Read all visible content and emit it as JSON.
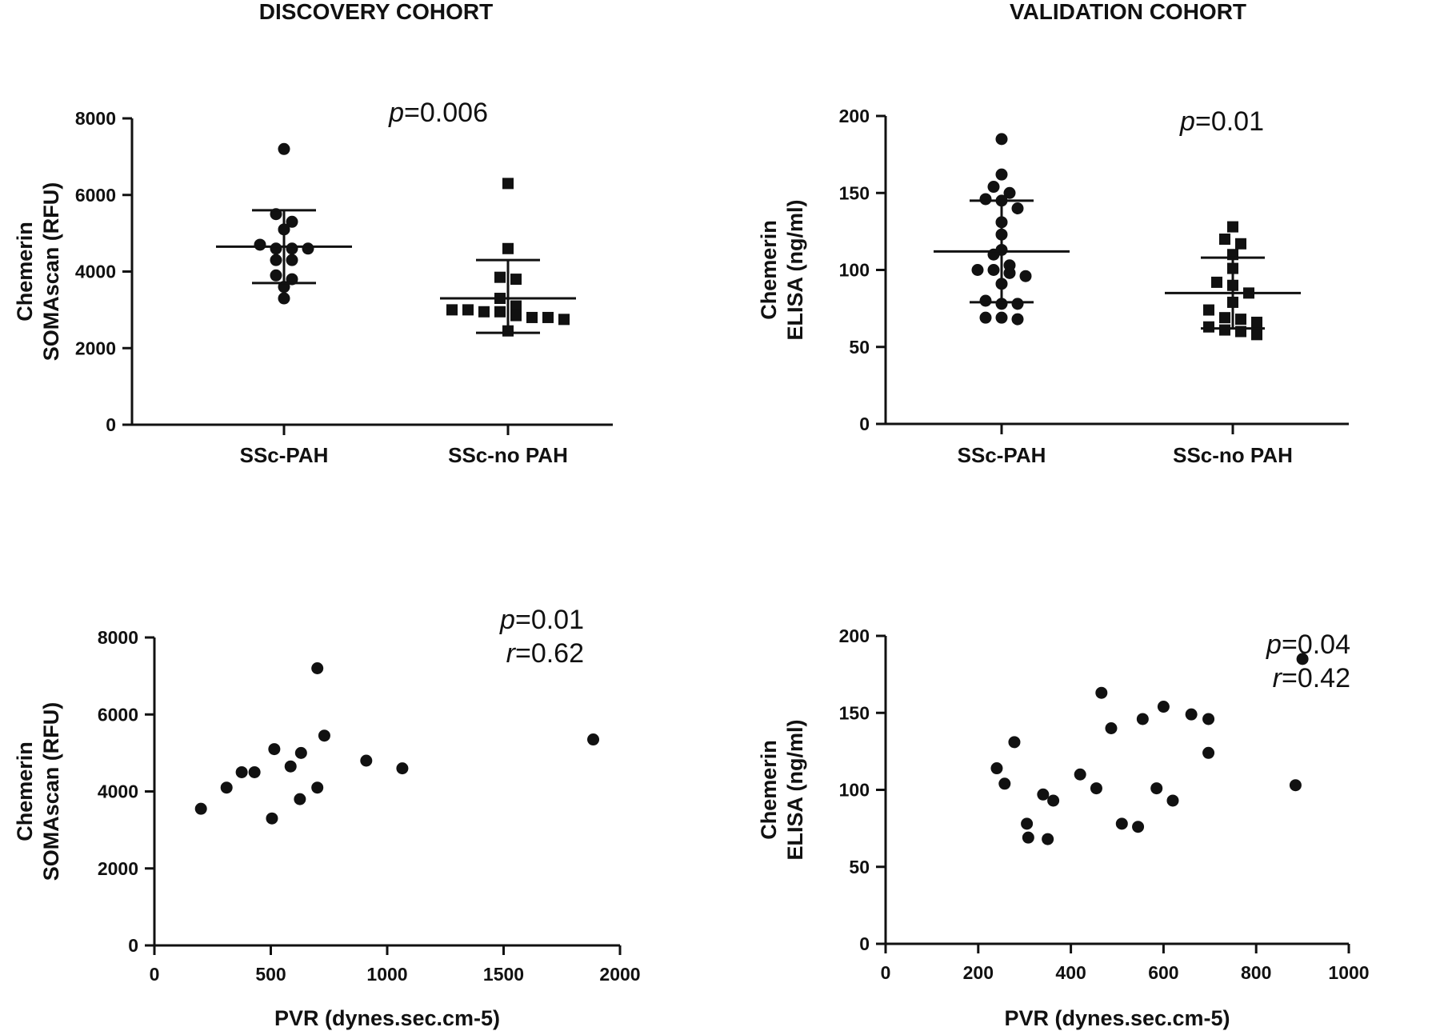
{
  "cohorts": {
    "discovery": "DISCOVERY COHORT",
    "validation": "VALIDATION COHORT"
  },
  "colors": {
    "ink": "#111111",
    "background": "#ffffff"
  },
  "chart_data": [
    {
      "id": "discovery-dot",
      "type": "scatter",
      "subtype": "dot-plot-mean-sd",
      "ylabel": [
        "Chemerin",
        "SOMAscan (RFU)"
      ],
      "ylim": [
        0,
        8000
      ],
      "yticks": [
        0,
        2000,
        4000,
        6000,
        8000
      ],
      "categories": [
        "SSc-PAH",
        "SSc-no PAH"
      ],
      "stat": [
        {
          "label": "p",
          "value": "=0.006"
        }
      ],
      "groups": [
        {
          "category": "SSc-PAH",
          "marker": "circle",
          "mean": 4650,
          "sd_low": 3700,
          "sd_high": 5600,
          "points": [
            7200,
            5500,
            5300,
            5100,
            4700,
            4600,
            4600,
            4600,
            4300,
            4300,
            3900,
            3800,
            3600,
            3300
          ]
        },
        {
          "category": "SSc-no PAH",
          "marker": "square",
          "mean": 3300,
          "sd_low": 2400,
          "sd_high": 4300,
          "points": [
            6300,
            4600,
            3850,
            3800,
            3300,
            3100,
            3000,
            3000,
            2950,
            2950,
            2850,
            2800,
            2800,
            2750,
            2450
          ]
        }
      ]
    },
    {
      "id": "validation-dot",
      "type": "scatter",
      "subtype": "dot-plot-mean-sd",
      "ylabel": [
        "Chemerin",
        "ELISA (ng/ml)"
      ],
      "ylim": [
        0,
        200
      ],
      "yticks": [
        0,
        50,
        100,
        150,
        200
      ],
      "categories": [
        "SSc-PAH",
        "SSc-no PAH"
      ],
      "stat": [
        {
          "label": "p",
          "value": "=0.01"
        }
      ],
      "groups": [
        {
          "category": "SSc-PAH",
          "marker": "circle",
          "mean": 112,
          "sd_low": 79,
          "sd_high": 145,
          "points": [
            185,
            162,
            154,
            150,
            146,
            145,
            140,
            131,
            123,
            113,
            110,
            103,
            100,
            100,
            98,
            96,
            91,
            80,
            78,
            78,
            69,
            69,
            68
          ]
        },
        {
          "category": "SSc-no PAH",
          "marker": "square",
          "mean": 85,
          "sd_low": 62,
          "sd_high": 108,
          "points": [
            128,
            120,
            117,
            110,
            101,
            92,
            90,
            85,
            79,
            74,
            69,
            68,
            66,
            63,
            61,
            60,
            58
          ]
        }
      ]
    },
    {
      "id": "discovery-scatter",
      "type": "scatter",
      "xlabel": "PVR (dynes.sec.cm-5)",
      "ylabel": [
        "Chemerin",
        "SOMAscan (RFU)"
      ],
      "xlim": [
        0,
        2000
      ],
      "xticks": [
        0,
        500,
        1000,
        1500,
        2000
      ],
      "ylim": [
        0,
        8000
      ],
      "yticks": [
        0,
        2000,
        4000,
        6000,
        8000
      ],
      "stat": [
        {
          "label": "p",
          "value": "=0.01"
        },
        {
          "label": "r",
          "value": "=0.62"
        }
      ],
      "points": [
        {
          "x": 200,
          "y": 3550
        },
        {
          "x": 310,
          "y": 4100
        },
        {
          "x": 375,
          "y": 4500
        },
        {
          "x": 430,
          "y": 4500
        },
        {
          "x": 505,
          "y": 3300
        },
        {
          "x": 515,
          "y": 5100
        },
        {
          "x": 585,
          "y": 4650
        },
        {
          "x": 625,
          "y": 3800
        },
        {
          "x": 630,
          "y": 5000
        },
        {
          "x": 700,
          "y": 4100
        },
        {
          "x": 700,
          "y": 7200
        },
        {
          "x": 730,
          "y": 5450
        },
        {
          "x": 910,
          "y": 4800
        },
        {
          "x": 1065,
          "y": 4600
        },
        {
          "x": 1885,
          "y": 5350
        }
      ]
    },
    {
      "id": "validation-scatter",
      "type": "scatter",
      "xlabel": "PVR (dynes.sec.cm-5)",
      "ylabel": [
        "Chemerin",
        "ELISA (ng/ml)"
      ],
      "xlim": [
        0,
        1000
      ],
      "xticks": [
        0,
        200,
        400,
        600,
        800,
        1000
      ],
      "ylim": [
        0,
        200
      ],
      "yticks": [
        0,
        50,
        100,
        150,
        200
      ],
      "stat": [
        {
          "label": "p",
          "value": "=0.04"
        },
        {
          "label": "r",
          "value": "=0.42"
        }
      ],
      "points": [
        {
          "x": 240,
          "y": 114
        },
        {
          "x": 257,
          "y": 104
        },
        {
          "x": 278,
          "y": 131
        },
        {
          "x": 305,
          "y": 78
        },
        {
          "x": 308,
          "y": 69
        },
        {
          "x": 340,
          "y": 97
        },
        {
          "x": 350,
          "y": 68
        },
        {
          "x": 362,
          "y": 93
        },
        {
          "x": 420,
          "y": 110
        },
        {
          "x": 455,
          "y": 101
        },
        {
          "x": 466,
          "y": 163
        },
        {
          "x": 487,
          "y": 140
        },
        {
          "x": 510,
          "y": 78
        },
        {
          "x": 545,
          "y": 76
        },
        {
          "x": 555,
          "y": 146
        },
        {
          "x": 585,
          "y": 101
        },
        {
          "x": 600,
          "y": 154
        },
        {
          "x": 620,
          "y": 93
        },
        {
          "x": 660,
          "y": 149
        },
        {
          "x": 697,
          "y": 146
        },
        {
          "x": 697,
          "y": 124
        },
        {
          "x": 885,
          "y": 103
        },
        {
          "x": 900,
          "y": 185
        }
      ]
    }
  ]
}
